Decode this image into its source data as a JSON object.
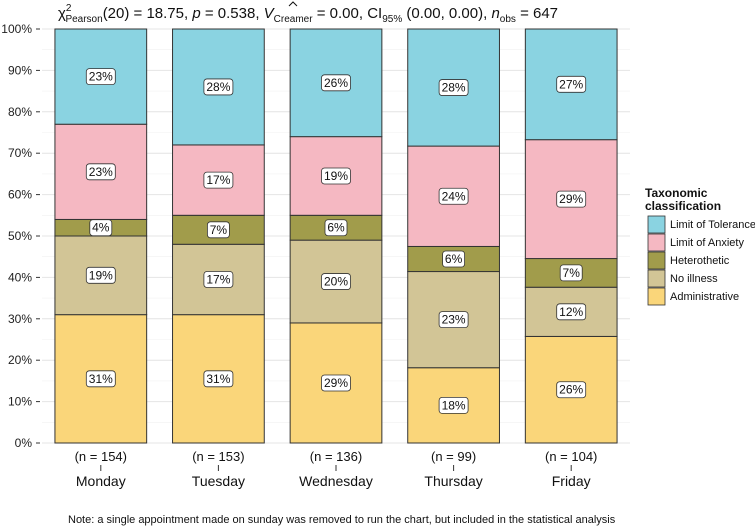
{
  "chart_data": {
    "type": "bar",
    "stacked": "percent",
    "title": {
      "chi": "χ",
      "chi_sup": "2",
      "chi_sub": "Pearson",
      "part1": "(20) = 18.75, ",
      "p": "p",
      "part2": " = 0.538, ",
      "v": "V",
      "v_sub": "Creamer",
      "part3": " = 0.00, CI",
      "ci_sub": "95%",
      "part4": " (0.00, 0.00), ",
      "n": "n",
      "n_sub": "obs",
      "part5": " = 647"
    },
    "caption": "Note: a single appointment made on sunday was removed to run the chart, but included in the statistical analysis",
    "legend_title_line1": "Taxonomic",
    "legend_title_line2": "classification",
    "legend_position": "right",
    "ylim": [
      0,
      100
    ],
    "y_ticks": [
      "0%",
      "10%",
      "20%",
      "30%",
      "40%",
      "50%",
      "60%",
      "70%",
      "80%",
      "90%",
      "100%"
    ],
    "categories": [
      "Monday",
      "Tuesday",
      "Wednesday",
      "Thursday",
      "Friday"
    ],
    "n_labels": [
      "(n = 154)",
      "(n = 153)",
      "(n = 136)",
      "(n = 99)",
      "(n = 104)"
    ],
    "series": [
      {
        "name": "Administrative",
        "color": "#FAD67A",
        "values": [
          31,
          31,
          29,
          18,
          26
        ],
        "labels": [
          "31%",
          "31%",
          "29%",
          "18%",
          "26%"
        ]
      },
      {
        "name": "No illness",
        "color": "#D2C596",
        "values": [
          19,
          17,
          20,
          23,
          12
        ],
        "labels": [
          "19%",
          "17%",
          "20%",
          "23%",
          "12%"
        ]
      },
      {
        "name": "Heterothetic",
        "color": "#A19C4B",
        "values": [
          4,
          7,
          6,
          6,
          7
        ],
        "labels": [
          "4%",
          "7%",
          "6%",
          "6%",
          "7%"
        ]
      },
      {
        "name": "Limit of Anxiety",
        "color": "#F5B8C2",
        "values": [
          23,
          17,
          19,
          24,
          29
        ],
        "labels": [
          "23%",
          "17%",
          "19%",
          "24%",
          "29%"
        ]
      },
      {
        "name": "Limit of Tolerance",
        "color": "#8AD3E1",
        "values": [
          23,
          28,
          26,
          28,
          27
        ],
        "labels": [
          "23%",
          "28%",
          "26%",
          "28%",
          "27%"
        ]
      }
    ],
    "grid": true
  }
}
